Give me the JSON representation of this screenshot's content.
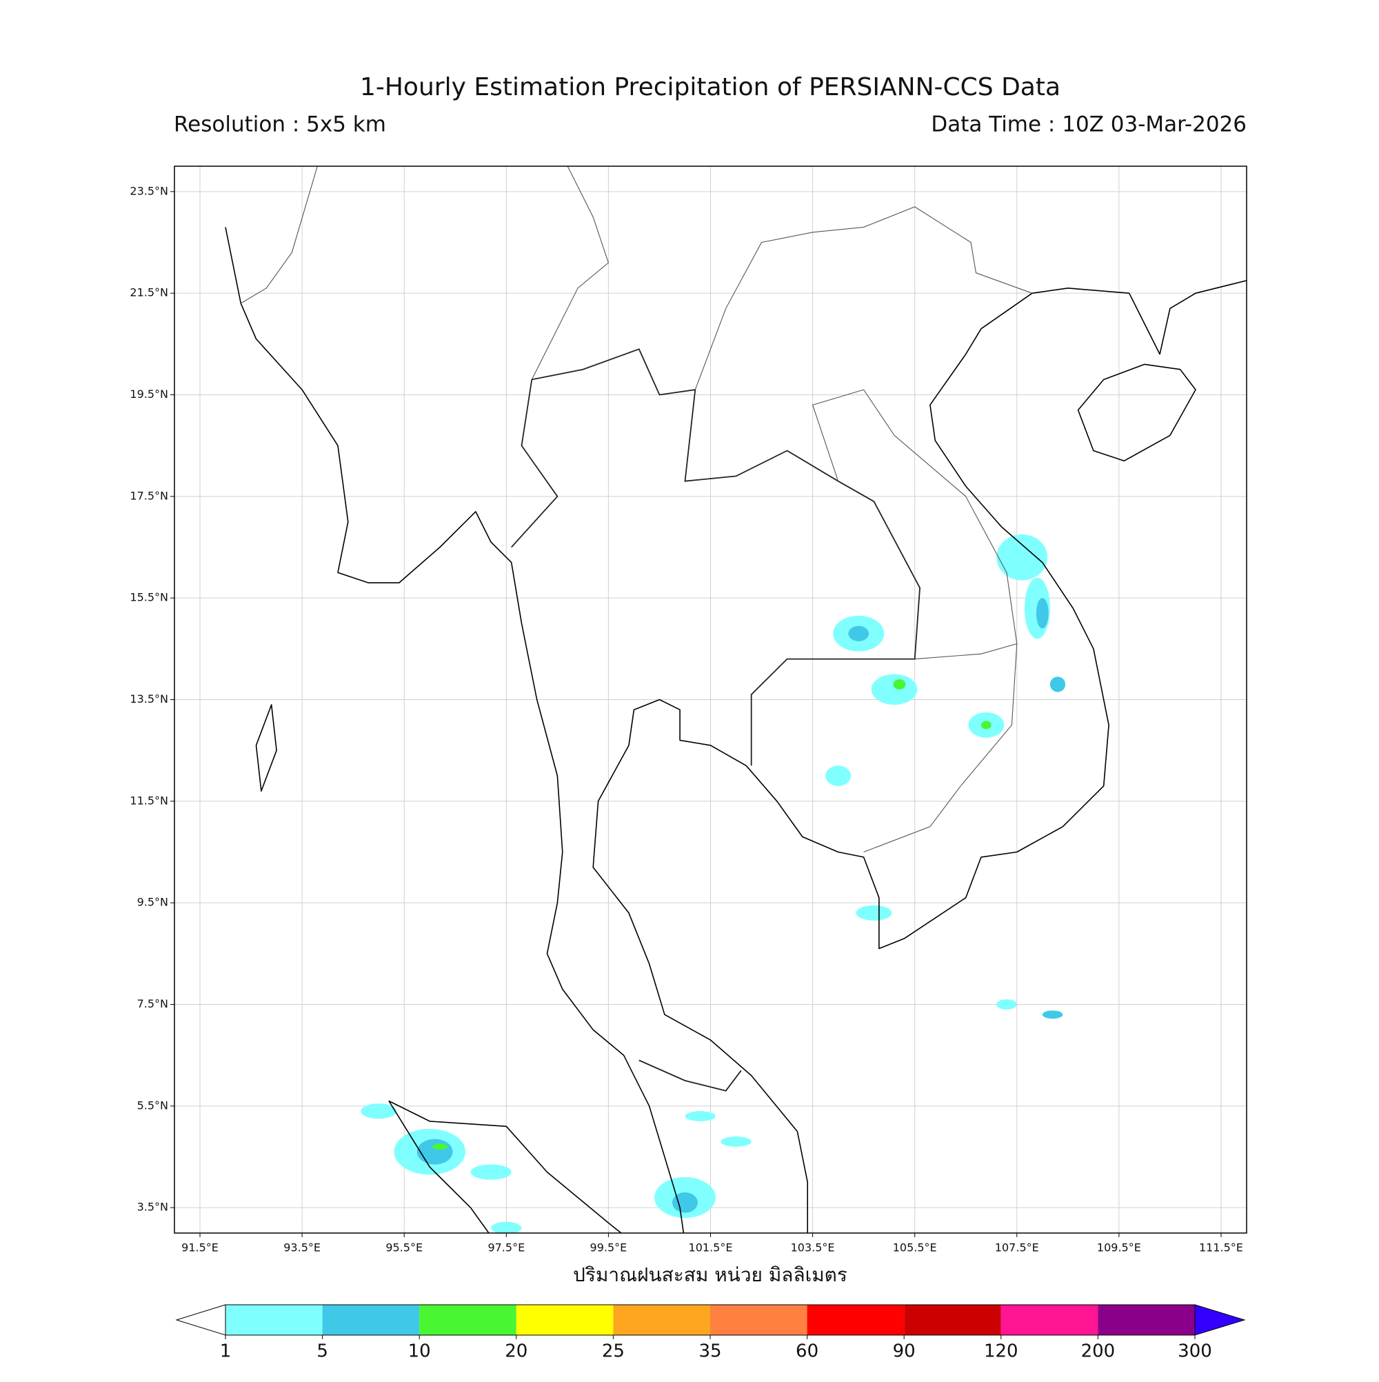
{
  "title": "1-Hourly Estimation Precipitation of PERSIANN-CCS Data",
  "subtitle_left": "Resolution : 5x5 km",
  "subtitle_right": "Data Time : 10Z 03-Mar-2026",
  "map": {
    "xlim": [
      91,
      112
    ],
    "ylim": [
      3,
      24
    ],
    "grid": true,
    "xticks": [
      {
        "value": 91.5,
        "label": "91.5°E"
      },
      {
        "value": 93.5,
        "label": "93.5°E"
      },
      {
        "value": 95.5,
        "label": "95.5°E"
      },
      {
        "value": 97.5,
        "label": "97.5°E"
      },
      {
        "value": 99.5,
        "label": "99.5°E"
      },
      {
        "value": 101.5,
        "label": "101.5°E"
      },
      {
        "value": 103.5,
        "label": "103.5°E"
      },
      {
        "value": 105.5,
        "label": "105.5°E"
      },
      {
        "value": 107.5,
        "label": "107.5°E"
      },
      {
        "value": 109.5,
        "label": "109.5°E"
      },
      {
        "value": 111.5,
        "label": "111.5°E"
      }
    ],
    "yticks": [
      {
        "value": 3.5,
        "label": "3.5°N"
      },
      {
        "value": 5.5,
        "label": "5.5°N"
      },
      {
        "value": 7.5,
        "label": "7.5°N"
      },
      {
        "value": 9.5,
        "label": "9.5°N"
      },
      {
        "value": 11.5,
        "label": "11.5°N"
      },
      {
        "value": 13.5,
        "label": "13.5°N"
      },
      {
        "value": 15.5,
        "label": "15.5°N"
      },
      {
        "value": 17.5,
        "label": "17.5°N"
      },
      {
        "value": 19.5,
        "label": "19.5°N"
      },
      {
        "value": 21.5,
        "label": "21.5°N"
      },
      {
        "value": 23.5,
        "label": "23.5°N"
      }
    ]
  },
  "colorbar": {
    "label": "ปริมาณฝนสะสม หน่วย มิลลิเมตร",
    "levels": [
      1,
      5,
      10,
      20,
      25,
      35,
      60,
      90,
      120,
      200,
      300
    ],
    "colors": [
      "#80ffff",
      "#40c8e8",
      "#48f632",
      "#ffff00",
      "#ffa620",
      "#ff8040",
      "#ff0000",
      "#cc0000",
      "#ff1493",
      "#8b008b"
    ],
    "under_color": "#ffffff",
    "over_color": "#3300ff"
  }
}
